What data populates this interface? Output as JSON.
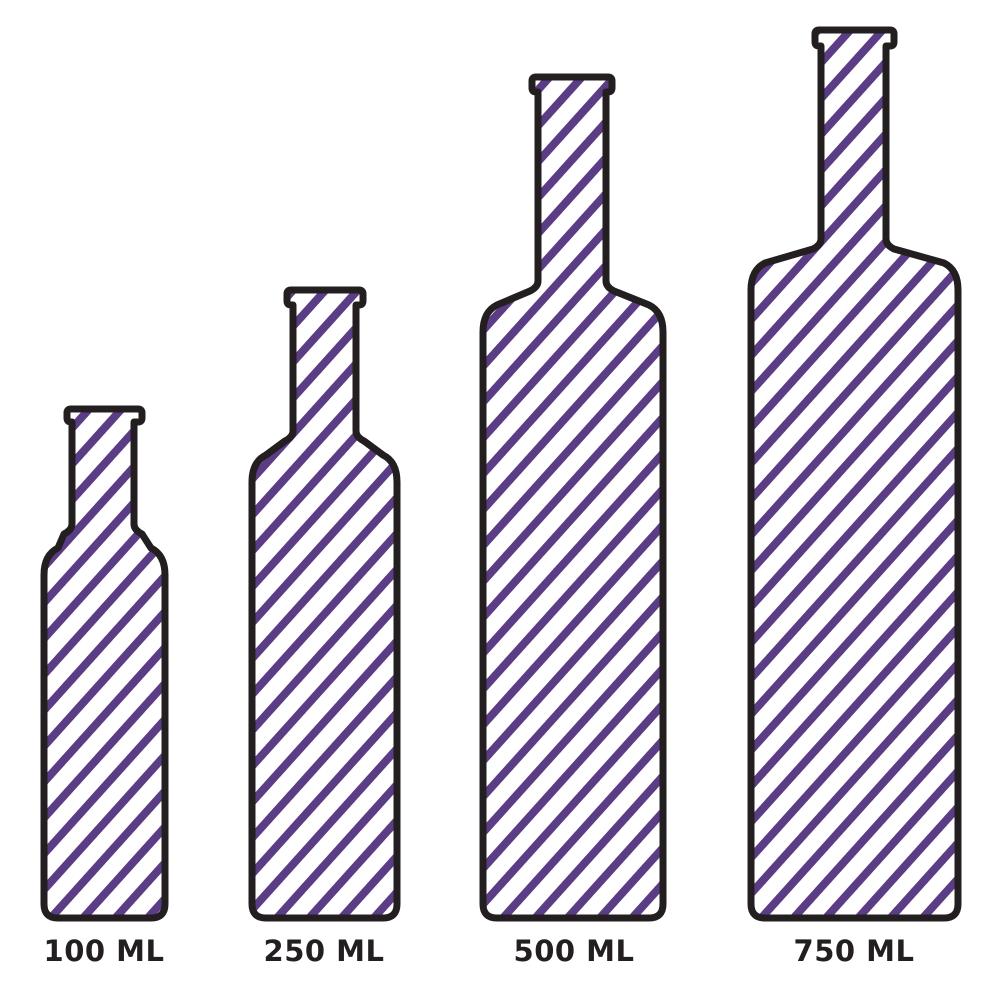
{
  "colors": {
    "stripe": "#5b3d85",
    "outline": "#231f20",
    "background": "#ffffff"
  },
  "bottles": [
    {
      "label": "100 ML"
    },
    {
      "label": "250 ML"
    },
    {
      "label": "500 ML"
    },
    {
      "label": "750 ML"
    }
  ]
}
